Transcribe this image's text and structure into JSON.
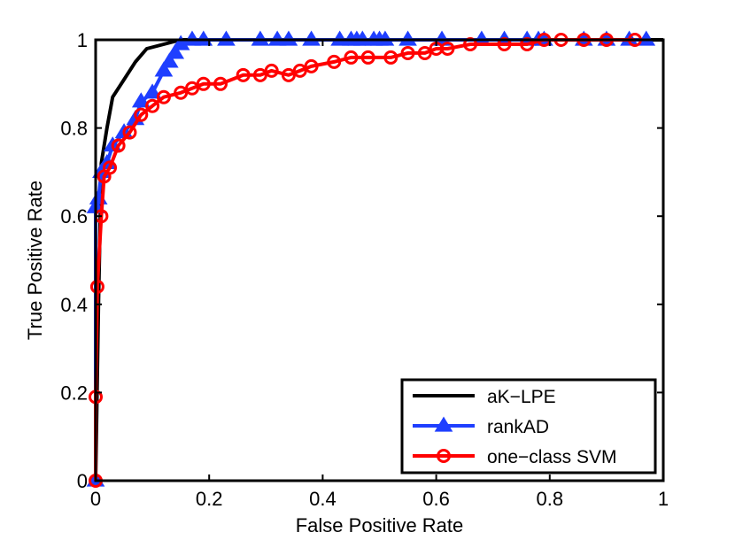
{
  "chart_data": {
    "type": "line",
    "title": "",
    "xlabel": "False Positive Rate",
    "ylabel": "True Positive Rate",
    "xlim": [
      0,
      1
    ],
    "ylim": [
      0,
      1
    ],
    "xticks": [
      "0",
      "0.2",
      "0.4",
      "0.6",
      "0.8",
      "1"
    ],
    "yticks": [
      "0",
      "0.2",
      "0.4",
      "0.6",
      "0.8",
      "1"
    ],
    "grid": false,
    "legend_position": "bottom-right",
    "series": [
      {
        "name": "aK−LPE",
        "color": "#000000",
        "marker": "none",
        "x": [
          0,
          0.005,
          0.01,
          0.02,
          0.03,
          0.05,
          0.07,
          0.09,
          0.12,
          0.15,
          0.2,
          0.4,
          0.6,
          0.8,
          1.0
        ],
        "y": [
          0,
          0.4,
          0.72,
          0.8,
          0.87,
          0.91,
          0.95,
          0.98,
          0.99,
          1.0,
          1.0,
          1.0,
          1.0,
          1.0,
          1.0
        ]
      },
      {
        "name": "rankAD",
        "color": "#1f3fff",
        "marker": "triangle",
        "x": [
          0,
          0,
          0.005,
          0.01,
          0.02,
          0.03,
          0.05,
          0.07,
          0.08,
          0.1,
          0.12,
          0.13,
          0.14,
          0.15,
          0.17,
          0.19,
          0.23,
          0.29,
          0.32,
          0.34,
          0.38,
          0.43,
          0.45,
          0.46,
          0.47,
          0.49,
          0.5,
          0.51,
          0.55,
          0.61,
          0.68,
          0.72,
          0.76,
          0.78,
          0.79,
          0.86,
          0.9,
          0.94,
          0.97
        ],
        "y": [
          0,
          0.62,
          0.64,
          0.7,
          0.72,
          0.76,
          0.79,
          0.82,
          0.86,
          0.88,
          0.93,
          0.95,
          0.97,
          0.99,
          1.0,
          1.0,
          1.0,
          1.0,
          1.0,
          1.0,
          1.0,
          1.0,
          1.0,
          1.0,
          1.0,
          1.0,
          1.0,
          1.0,
          1.0,
          1.0,
          1.0,
          1.0,
          1.0,
          1.0,
          1.0,
          1.0,
          1.0,
          1.0,
          1.0
        ]
      },
      {
        "name": "one−class SVM",
        "color": "#ff0000",
        "marker": "circle",
        "x": [
          0,
          0,
          0.003,
          0.01,
          0.015,
          0.025,
          0.04,
          0.06,
          0.08,
          0.1,
          0.12,
          0.15,
          0.17,
          0.19,
          0.22,
          0.26,
          0.29,
          0.31,
          0.34,
          0.36,
          0.38,
          0.42,
          0.45,
          0.48,
          0.52,
          0.55,
          0.58,
          0.6,
          0.62,
          0.66,
          0.72,
          0.76,
          0.79,
          0.82,
          0.86,
          0.9,
          0.95
        ],
        "y": [
          0,
          0.19,
          0.44,
          0.6,
          0.69,
          0.71,
          0.76,
          0.79,
          0.83,
          0.85,
          0.87,
          0.88,
          0.89,
          0.9,
          0.9,
          0.92,
          0.92,
          0.93,
          0.92,
          0.93,
          0.94,
          0.95,
          0.96,
          0.96,
          0.96,
          0.97,
          0.97,
          0.98,
          0.98,
          0.99,
          0.99,
          0.99,
          1.0,
          1.0,
          1.0,
          1.0,
          1.0
        ]
      }
    ]
  }
}
